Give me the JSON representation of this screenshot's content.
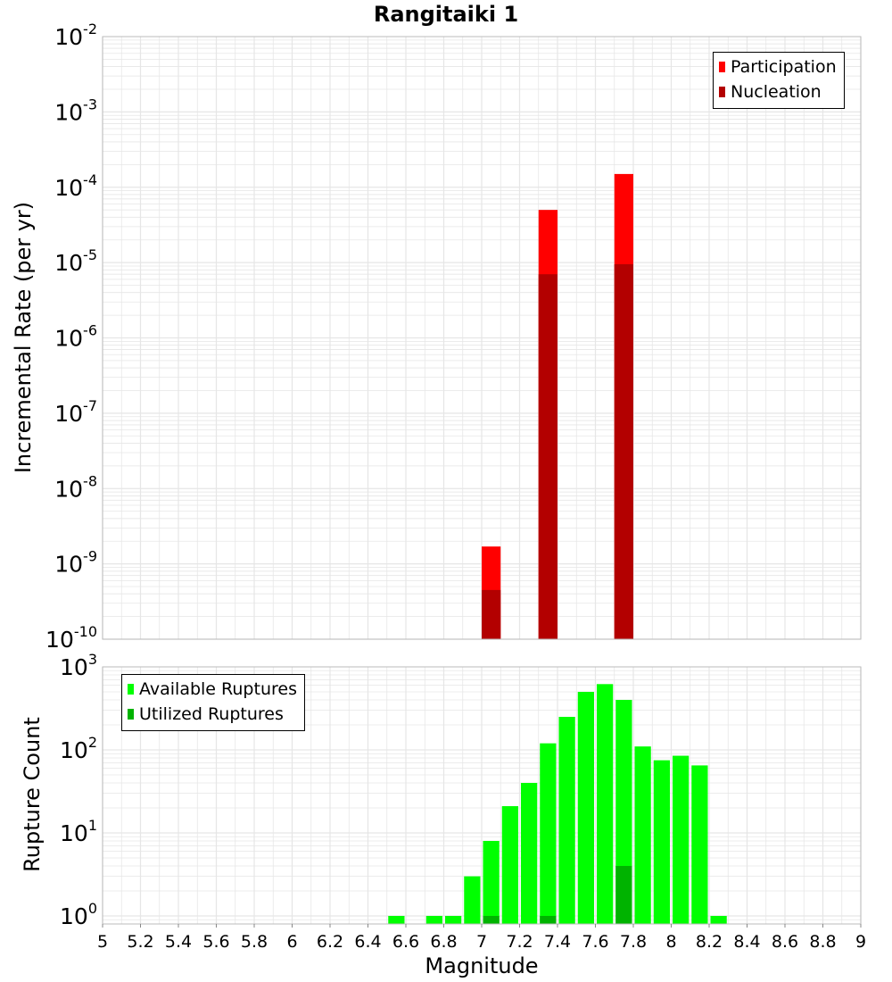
{
  "colors": {
    "participation": "#ff0000",
    "nucleation": "#b30000",
    "available": "#00ff00",
    "utilized": "#00b300",
    "grid": "#e6e6e6",
    "frame": "#bbbbbb"
  },
  "chart_data": [
    {
      "type": "bar",
      "title": "Rangitaiki 1",
      "ylabel": "Incremental Rate (per yr)",
      "xlabel": "",
      "xlim": [
        5,
        9
      ],
      "ylim": [
        1e-10,
        0.01
      ],
      "yscale": "log",
      "grid": true,
      "legend_position": "top-right",
      "bin_width": 0.1,
      "ytick_bases": [
        "10",
        "10",
        "10",
        "10",
        "10",
        "10",
        "10",
        "10",
        "10"
      ],
      "ytick_exponents": [
        "-10",
        "-9",
        "-8",
        "-7",
        "-6",
        "-5",
        "-4",
        "-3",
        "-2"
      ],
      "series": [
        {
          "name": "Participation",
          "x": [
            7.05,
            7.35,
            7.75
          ],
          "values": [
            1.7e-09,
            5e-05,
            0.00015
          ]
        },
        {
          "name": "Nucleation",
          "x": [
            7.05,
            7.35,
            7.75
          ],
          "values": [
            4.5e-10,
            7e-06,
            9.5e-06
          ]
        }
      ]
    },
    {
      "type": "bar",
      "title": "",
      "ylabel": "Rupture Count",
      "xlabel": "Magnitude",
      "xlim": [
        5,
        9
      ],
      "ylim": [
        0.8,
        1000
      ],
      "yscale": "log",
      "grid": true,
      "legend_position": "top-left",
      "bin_width": 0.1,
      "xticks": [
        "5",
        "5.2",
        "5.4",
        "5.6",
        "5.8",
        "6",
        "6.2",
        "6.4",
        "6.6",
        "6.8",
        "7",
        "7.2",
        "7.4",
        "7.6",
        "7.8",
        "8",
        "8.2",
        "8.4",
        "8.6",
        "8.8",
        "9"
      ],
      "ytick_bases": [
        "10",
        "10",
        "10",
        "10"
      ],
      "ytick_exponents": [
        "0",
        "1",
        "2",
        "3"
      ],
      "series": [
        {
          "name": "Available Ruptures",
          "x": [
            6.55,
            6.75,
            6.85,
            6.95,
            7.05,
            7.15,
            7.25,
            7.35,
            7.45,
            7.55,
            7.65,
            7.75,
            7.85,
            7.95,
            8.05,
            8.15,
            8.25
          ],
          "values": [
            1,
            1,
            1,
            3,
            8,
            21,
            40,
            120,
            250,
            500,
            620,
            400,
            110,
            75,
            85,
            65,
            1
          ]
        },
        {
          "name": "Utilized Ruptures",
          "x": [
            7.05,
            7.35,
            7.75
          ],
          "values": [
            1,
            1,
            4
          ]
        }
      ]
    }
  ]
}
